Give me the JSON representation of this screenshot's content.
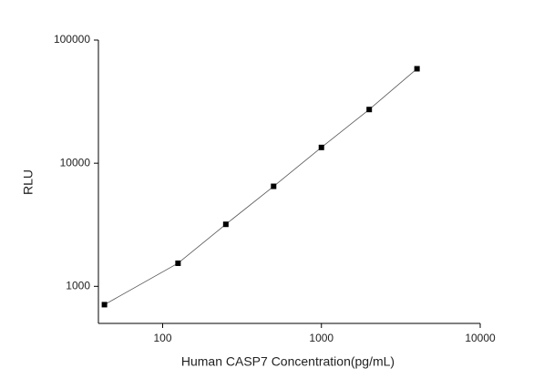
{
  "chart_data": {
    "type": "scatter",
    "x_label": "Human CASP7 Concentration(pg/mL)",
    "y_label": "RLU",
    "x": [
      43,
      125,
      250,
      500,
      1000,
      2000,
      4000
    ],
    "series": [
      {
        "color": "#000000",
        "values": [
          710,
          1540,
          3190,
          6490,
          13430,
          27300,
          58500
        ]
      }
    ],
    "line": true,
    "xlim": [
      39.4,
      10000
    ],
    "ylim": [
      500,
      100000
    ],
    "xticks": [
      100,
      1000,
      10000
    ],
    "yticks": [
      1000,
      10000,
      100000
    ],
    "xscale": "log",
    "yscale": "log",
    "grid": false
  }
}
